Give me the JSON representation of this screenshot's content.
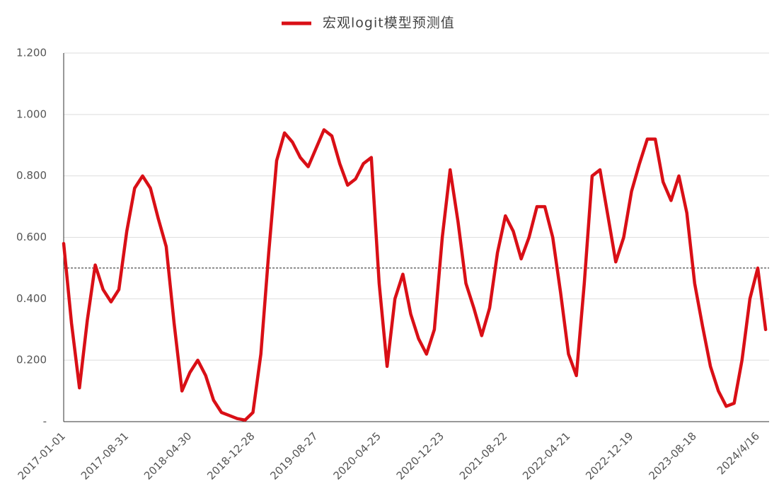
{
  "chart_data": {
    "type": "line",
    "categories": [
      "2017-01-01",
      null,
      null,
      null,
      null,
      null,
      null,
      null,
      "2017-08-31",
      null,
      null,
      null,
      null,
      null,
      null,
      null,
      "2018-04-30",
      null,
      null,
      null,
      null,
      null,
      null,
      null,
      "2018-12-28",
      null,
      null,
      null,
      null,
      null,
      null,
      null,
      "2019-08-27",
      null,
      null,
      null,
      null,
      null,
      null,
      null,
      "2020-04-25",
      null,
      null,
      null,
      null,
      null,
      null,
      null,
      "2020-12-23",
      null,
      null,
      null,
      null,
      null,
      null,
      null,
      "2021-08-22",
      null,
      null,
      null,
      null,
      null,
      null,
      null,
      "2022-04-21",
      null,
      null,
      null,
      null,
      null,
      null,
      null,
      "2022-12-19",
      null,
      null,
      null,
      null,
      null,
      null,
      null,
      "2023-08-18",
      null,
      null,
      null,
      null,
      null,
      null,
      null,
      "2024/4/16",
      null
    ],
    "series": [
      {
        "name": "宏观logit模型预测值",
        "color": "#d90f16",
        "values": [
          0.58,
          0.32,
          0.11,
          0.33,
          0.51,
          0.43,
          0.39,
          0.43,
          0.62,
          0.76,
          0.8,
          0.76,
          0.66,
          0.57,
          0.32,
          0.1,
          0.16,
          0.2,
          0.15,
          0.07,
          0.03,
          0.02,
          0.01,
          0.005,
          0.03,
          0.22,
          0.55,
          0.85,
          0.94,
          0.91,
          0.86,
          0.83,
          0.89,
          0.95,
          0.93,
          0.84,
          0.77,
          0.79,
          0.84,
          0.86,
          0.45,
          0.18,
          0.4,
          0.48,
          0.35,
          0.27,
          0.22,
          0.3,
          0.6,
          0.82,
          0.65,
          0.45,
          0.37,
          0.28,
          0.37,
          0.55,
          0.67,
          0.62,
          0.53,
          0.6,
          0.7,
          0.7,
          0.6,
          0.42,
          0.22,
          0.15,
          0.45,
          0.8,
          0.82,
          0.67,
          0.52,
          0.6,
          0.75,
          0.84,
          0.92,
          0.92,
          0.78,
          0.72,
          0.8,
          0.68,
          0.45,
          0.31,
          0.18,
          0.1,
          0.05,
          0.06,
          0.2,
          0.4,
          0.5,
          0.3
        ]
      }
    ],
    "ylim": [
      0,
      1.2
    ],
    "yticks": [
      {
        "value": 0,
        "label": "-"
      },
      {
        "value": 0.2,
        "label": "0.200"
      },
      {
        "value": 0.4,
        "label": "0.400"
      },
      {
        "value": 0.6,
        "label": "0.600"
      },
      {
        "value": 0.8,
        "label": "0.800"
      },
      {
        "value": 1.0,
        "label": "1.000"
      },
      {
        "value": 1.2,
        "label": "1.200"
      }
    ],
    "reference_line": 0.5,
    "grid": true,
    "legend": "top"
  }
}
